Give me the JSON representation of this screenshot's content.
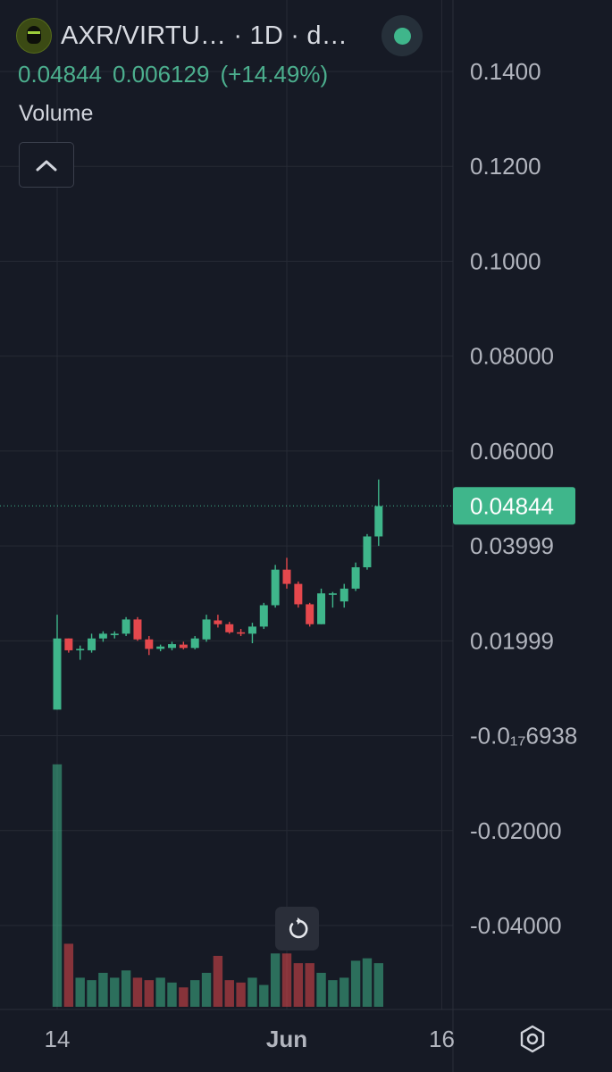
{
  "header": {
    "symbol_line": "AXR/VIRTU… · 1D · d…",
    "last": "0.04844",
    "change": "0.006129",
    "change_pct": "(+14.49%)",
    "volume_label": "Volume"
  },
  "colors": {
    "up": "#3fb68b",
    "down": "#e5484d",
    "bg": "#161a25",
    "grid": "#262a35",
    "text": "#d1d4dc"
  },
  "icons": [
    "user-avatar-icon",
    "status-dot-icon",
    "chevron-up-icon",
    "reset-icon",
    "settings-hexagon-icon"
  ],
  "chart_data": {
    "type": "candlestick",
    "interval": "1D",
    "price_axis_labels": [
      "0.1400",
      "0.1200",
      "0.1000",
      "0.08000",
      "0.06000",
      "0.03999",
      "0.01999",
      "-0.0₁₇6938",
      "-0.02000",
      "-0.04000"
    ],
    "price_axis_values": [
      0.14,
      0.12,
      0.1,
      0.08,
      0.06,
      0.03999,
      0.01999,
      0.0,
      -0.02,
      -0.04
    ],
    "ylim": [
      -0.056,
      0.153
    ],
    "last_price": "0.04844",
    "time_axis": {
      "labels": [
        "14",
        "Jun",
        "16"
      ],
      "label_index": [
        0,
        20,
        33.5
      ]
    },
    "candles": [
      {
        "o": 0.0055,
        "h": 0.0255,
        "l": 0.0055,
        "c": 0.0205
      },
      {
        "o": 0.0205,
        "h": 0.0205,
        "l": 0.0175,
        "c": 0.018
      },
      {
        "o": 0.018,
        "h": 0.019,
        "l": 0.016,
        "c": 0.0183
      },
      {
        "o": 0.018,
        "h": 0.0215,
        "l": 0.0175,
        "c": 0.0205
      },
      {
        "o": 0.0205,
        "h": 0.022,
        "l": 0.0198,
        "c": 0.0215
      },
      {
        "o": 0.0212,
        "h": 0.022,
        "l": 0.0205,
        "c": 0.0215
      },
      {
        "o": 0.0215,
        "h": 0.025,
        "l": 0.021,
        "c": 0.0245
      },
      {
        "o": 0.0245,
        "h": 0.025,
        "l": 0.02,
        "c": 0.0203
      },
      {
        "o": 0.0203,
        "h": 0.021,
        "l": 0.017,
        "c": 0.0183
      },
      {
        "o": 0.0183,
        "h": 0.0192,
        "l": 0.0178,
        "c": 0.0188
      },
      {
        "o": 0.0185,
        "h": 0.0198,
        "l": 0.018,
        "c": 0.0193
      },
      {
        "o": 0.0192,
        "h": 0.0198,
        "l": 0.0182,
        "c": 0.0185
      },
      {
        "o": 0.0185,
        "h": 0.021,
        "l": 0.0182,
        "c": 0.0205
      },
      {
        "o": 0.0203,
        "h": 0.0255,
        "l": 0.0198,
        "c": 0.0245
      },
      {
        "o": 0.0243,
        "h": 0.0255,
        "l": 0.0228,
        "c": 0.0235
      },
      {
        "o": 0.0235,
        "h": 0.024,
        "l": 0.0215,
        "c": 0.0218
      },
      {
        "o": 0.0218,
        "h": 0.0225,
        "l": 0.021,
        "c": 0.0215
      },
      {
        "o": 0.0215,
        "h": 0.0238,
        "l": 0.0195,
        "c": 0.023
      },
      {
        "o": 0.023,
        "h": 0.028,
        "l": 0.0225,
        "c": 0.0275
      },
      {
        "o": 0.0275,
        "h": 0.036,
        "l": 0.027,
        "c": 0.035
      },
      {
        "o": 0.035,
        "h": 0.0375,
        "l": 0.031,
        "c": 0.032
      },
      {
        "o": 0.032,
        "h": 0.0325,
        "l": 0.027,
        "c": 0.0277
      },
      {
        "o": 0.0277,
        "h": 0.028,
        "l": 0.023,
        "c": 0.0235
      },
      {
        "o": 0.0235,
        "h": 0.031,
        "l": 0.0235,
        "c": 0.03
      },
      {
        "o": 0.03,
        "h": 0.0303,
        "l": 0.027,
        "c": 0.03
      },
      {
        "o": 0.0283,
        "h": 0.032,
        "l": 0.027,
        "c": 0.031
      },
      {
        "o": 0.031,
        "h": 0.0365,
        "l": 0.0305,
        "c": 0.0355
      },
      {
        "o": 0.0355,
        "h": 0.0425,
        "l": 0.035,
        "c": 0.042
      },
      {
        "o": 0.042,
        "h": 0.054,
        "l": 0.04,
        "c": 0.0484
      }
    ],
    "volume": [
      100,
      26,
      12,
      11,
      14,
      12,
      15,
      12,
      11,
      12,
      10,
      8,
      11,
      14,
      21,
      11,
      10,
      12,
      9,
      22,
      22,
      18,
      18,
      14,
      11,
      12,
      19,
      20,
      18
    ],
    "volume_ymax": 105
  }
}
